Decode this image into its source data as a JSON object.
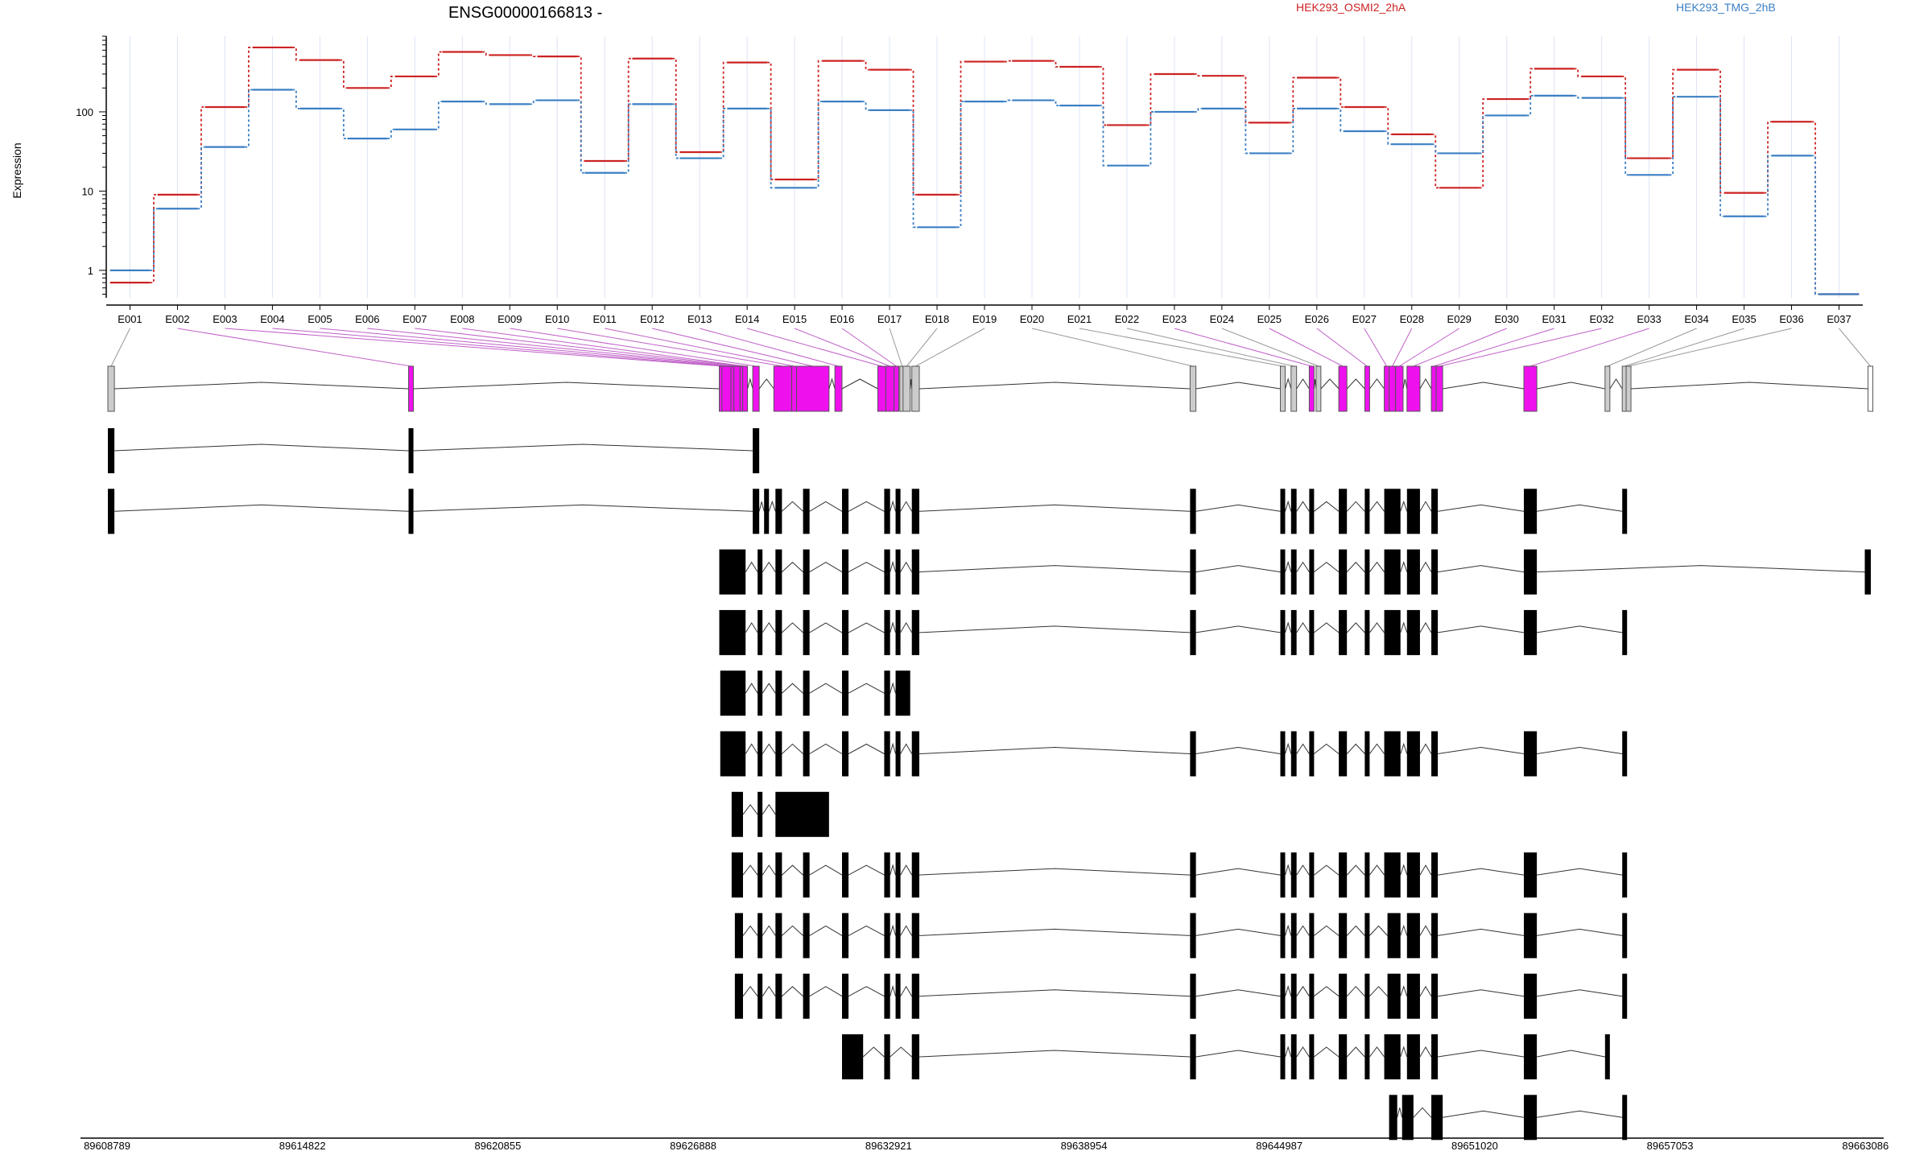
{
  "header": {
    "gene_title": "ENSG00000166813 -",
    "legend": [
      {
        "label": "HEK293_OSMI2_2hA",
        "color": "#cc2222"
      },
      {
        "label": "HEK293_TMG_2hB",
        "color": "#3a7fc4"
      }
    ]
  },
  "chart_data": [
    {
      "type": "line",
      "ylabel": "Expression",
      "y_scale": "log",
      "y_ticks": [
        "1",
        "10",
        "100"
      ],
      "y_tick_values": [
        1,
        10,
        100
      ],
      "ylim": [
        0.45,
        900
      ],
      "categories": [
        "E001",
        "E002",
        "E003",
        "E004",
        "E005",
        "E006",
        "E007",
        "E008",
        "E009",
        "E010",
        "E011",
        "E012",
        "E013",
        "E014",
        "E015",
        "E016",
        "E017",
        "E018",
        "E019",
        "E020",
        "E021",
        "E022",
        "E023",
        "E024",
        "E025",
        "E026",
        "E027",
        "E028",
        "E029",
        "E030",
        "E031",
        "E032",
        "E033",
        "E034",
        "E035",
        "E036",
        "E037"
      ],
      "series": [
        {
          "name": "HEK293_OSMI2_2hA",
          "color": "#cc2222",
          "values": [
            0.7,
            9,
            115,
            650,
            450,
            200,
            280,
            570,
            520,
            500,
            24,
            470,
            31,
            420,
            14,
            440,
            340,
            9,
            430,
            440,
            370,
            68,
            300,
            285,
            73,
            270,
            115,
            52,
            11,
            145,
            350,
            280,
            26,
            340,
            9.5,
            75,
            0.5
          ]
        },
        {
          "name": "HEK293_TMG_2hB",
          "color": "#3a7fc4",
          "values": [
            1,
            6,
            36,
            190,
            110,
            46,
            60,
            135,
            125,
            140,
            17,
            125,
            26,
            110,
            11,
            135,
            105,
            3.5,
            135,
            140,
            120,
            21,
            100,
            110,
            30,
            110,
            57,
            39,
            30,
            90,
            160,
            150,
            16,
            155,
            4.8,
            28,
            0.5
          ]
        }
      ]
    },
    {
      "type": "gene-model",
      "x_ticks": [
        "89608789",
        "89614822",
        "89620855",
        "89626888",
        "89632921",
        "89638954",
        "89644987",
        "89651020",
        "89657053",
        "89663086"
      ],
      "x_tick_values": [
        89608789,
        89614822,
        89620855,
        89626888,
        89632921,
        89638954,
        89644987,
        89651020,
        89657053,
        89663086
      ],
      "xlim": [
        89608789,
        89663086
      ],
      "exon_bins": [
        {
          "id": "E001",
          "start": 89608789,
          "end": 89608990,
          "sig": false
        },
        {
          "id": "E002",
          "start": 89618050,
          "end": 89618200,
          "sig": true
        },
        {
          "id": "E003",
          "start": 89627620,
          "end": 89627700,
          "sig": true
        },
        {
          "id": "E004",
          "start": 89627700,
          "end": 89627980,
          "sig": true
        },
        {
          "id": "E005",
          "start": 89627980,
          "end": 89628070,
          "sig": true
        },
        {
          "id": "E006",
          "start": 89628070,
          "end": 89628260,
          "sig": true
        },
        {
          "id": "E007",
          "start": 89628260,
          "end": 89628340,
          "sig": true
        },
        {
          "id": "E008",
          "start": 89628340,
          "end": 89628430,
          "sig": true
        },
        {
          "id": "E009",
          "start": 89628650,
          "end": 89628850,
          "sig": true
        },
        {
          "id": "E010",
          "start": 89629300,
          "end": 89629850,
          "sig": true
        },
        {
          "id": "E011",
          "start": 89629850,
          "end": 89630000,
          "sig": true
        },
        {
          "id": "E012",
          "start": 89630000,
          "end": 89631000,
          "sig": true
        },
        {
          "id": "E013",
          "start": 89631180,
          "end": 89631400,
          "sig": true
        },
        {
          "id": "E014",
          "start": 89632500,
          "end": 89632750,
          "sig": true
        },
        {
          "id": "E015",
          "start": 89632750,
          "end": 89633000,
          "sig": true
        },
        {
          "id": "E016",
          "start": 89633000,
          "end": 89633100,
          "sig": true
        },
        {
          "id": "E017",
          "start": 89633180,
          "end": 89633280,
          "sig": false
        },
        {
          "id": "E018",
          "start": 89633280,
          "end": 89633500,
          "sig": false
        },
        {
          "id": "E019",
          "start": 89633550,
          "end": 89633780,
          "sig": false
        },
        {
          "id": "E020",
          "start": 89642120,
          "end": 89642300,
          "sig": false
        },
        {
          "id": "E021",
          "start": 89644900,
          "end": 89645030,
          "sig": false
        },
        {
          "id": "E022",
          "start": 89645230,
          "end": 89645400,
          "sig": false
        },
        {
          "id": "E023",
          "start": 89645790,
          "end": 89645900,
          "sig": true
        },
        {
          "id": "E024",
          "start": 89646000,
          "end": 89646060,
          "sig": false
        },
        {
          "id": "E025",
          "start": 89646700,
          "end": 89646950,
          "sig": true
        },
        {
          "id": "E026",
          "start": 89647500,
          "end": 89647650,
          "sig": true
        },
        {
          "id": "E027",
          "start": 89648100,
          "end": 89648250,
          "sig": true
        },
        {
          "id": "E028",
          "start": 89648250,
          "end": 89648450,
          "sig": true
        },
        {
          "id": "E029",
          "start": 89648450,
          "end": 89648680,
          "sig": true
        },
        {
          "id": "E030",
          "start": 89648800,
          "end": 89649200,
          "sig": true
        },
        {
          "id": "E031",
          "start": 89649550,
          "end": 89649700,
          "sig": true
        },
        {
          "id": "E032",
          "start": 89649700,
          "end": 89649900,
          "sig": true
        },
        {
          "id": "E033",
          "start": 89652400,
          "end": 89652800,
          "sig": true
        },
        {
          "id": "E034",
          "start": 89654900,
          "end": 89655000,
          "sig": false
        },
        {
          "id": "E035",
          "start": 89655430,
          "end": 89655550,
          "sig": false
        },
        {
          "id": "E036",
          "start": 89655550,
          "end": 89655570,
          "sig": false
        },
        {
          "id": "E037",
          "start": 89663000,
          "end": 89663086,
          "sig": false
        }
      ],
      "transcripts": [
        [
          [
            89608789,
            89608990
          ],
          [
            89618050,
            89618200
          ],
          [
            89628650,
            89628850
          ]
        ],
        [
          [
            89608789,
            89608990
          ],
          [
            89618050,
            89618200
          ],
          [
            89628650,
            89628850
          ],
          [
            89629000,
            89629150
          ],
          [
            89629350,
            89629550
          ],
          [
            89630200,
            89630400
          ],
          [
            89631400,
            89631600
          ],
          [
            89632700,
            89632880
          ],
          [
            89633050,
            89633200
          ],
          [
            89633550,
            89633780
          ],
          [
            89642120,
            89642300
          ],
          [
            89644900,
            89645030
          ],
          [
            89645230,
            89645400
          ],
          [
            89645790,
            89645900
          ],
          [
            89646700,
            89646950
          ],
          [
            89647500,
            89647650
          ],
          [
            89648100,
            89648600
          ],
          [
            89648800,
            89649200
          ],
          [
            89649550,
            89649750
          ],
          [
            89652400,
            89652800
          ],
          [
            89655430,
            89655550
          ]
        ],
        [
          [
            89627620,
            89628430
          ],
          [
            89628800,
            89628950
          ],
          [
            89629350,
            89629550
          ],
          [
            89630200,
            89630400
          ],
          [
            89631400,
            89631600
          ],
          [
            89632700,
            89632880
          ],
          [
            89633050,
            89633200
          ],
          [
            89633550,
            89633780
          ],
          [
            89642120,
            89642300
          ],
          [
            89644900,
            89645030
          ],
          [
            89645230,
            89645400
          ],
          [
            89645790,
            89645900
          ],
          [
            89646700,
            89646950
          ],
          [
            89647500,
            89647650
          ],
          [
            89648100,
            89648600
          ],
          [
            89648800,
            89649200
          ],
          [
            89649550,
            89649750
          ],
          [
            89652400,
            89652800
          ],
          [
            89662900,
            89663086
          ]
        ],
        [
          [
            89627620,
            89628430
          ],
          [
            89628800,
            89628950
          ],
          [
            89629350,
            89629550
          ],
          [
            89630200,
            89630400
          ],
          [
            89631400,
            89631600
          ],
          [
            89632700,
            89632880
          ],
          [
            89633050,
            89633200
          ],
          [
            89633550,
            89633780
          ],
          [
            89642120,
            89642300
          ],
          [
            89644900,
            89645030
          ],
          [
            89645230,
            89645400
          ],
          [
            89645790,
            89645900
          ],
          [
            89646700,
            89646950
          ],
          [
            89647500,
            89647650
          ],
          [
            89648100,
            89648600
          ],
          [
            89648800,
            89649200
          ],
          [
            89649550,
            89649750
          ],
          [
            89652400,
            89652800
          ],
          [
            89655430,
            89655550
          ]
        ],
        [
          [
            89627650,
            89628430
          ],
          [
            89628800,
            89628950
          ],
          [
            89629350,
            89629550
          ],
          [
            89630200,
            89630400
          ],
          [
            89631400,
            89631600
          ],
          [
            89632700,
            89632880
          ],
          [
            89633050,
            89633500
          ]
        ],
        [
          [
            89627650,
            89628430
          ],
          [
            89628800,
            89628950
          ],
          [
            89629350,
            89629550
          ],
          [
            89630200,
            89630400
          ],
          [
            89631400,
            89631600
          ],
          [
            89632700,
            89632880
          ],
          [
            89633050,
            89633200
          ],
          [
            89633550,
            89633780
          ],
          [
            89642120,
            89642300
          ],
          [
            89644900,
            89645030
          ],
          [
            89645230,
            89645400
          ],
          [
            89645790,
            89645900
          ],
          [
            89646700,
            89646950
          ],
          [
            89647500,
            89647650
          ],
          [
            89648100,
            89648600
          ],
          [
            89648800,
            89649200
          ],
          [
            89649550,
            89649750
          ],
          [
            89652400,
            89652800
          ],
          [
            89655430,
            89655550
          ]
        ],
        [
          [
            89628000,
            89628350
          ],
          [
            89628800,
            89628950
          ],
          [
            89629350,
            89631000
          ]
        ],
        [
          [
            89628000,
            89628350
          ],
          [
            89628800,
            89628950
          ],
          [
            89629350,
            89629550
          ],
          [
            89630200,
            89630400
          ],
          [
            89631400,
            89631600
          ],
          [
            89632700,
            89632880
          ],
          [
            89633050,
            89633200
          ],
          [
            89633550,
            89633780
          ],
          [
            89642120,
            89642300
          ],
          [
            89644900,
            89645030
          ],
          [
            89645230,
            89645400
          ],
          [
            89645790,
            89645900
          ],
          [
            89646700,
            89646950
          ],
          [
            89647500,
            89647650
          ],
          [
            89648100,
            89648600
          ],
          [
            89648800,
            89649200
          ],
          [
            89649550,
            89649750
          ],
          [
            89652400,
            89652800
          ],
          [
            89655430,
            89655550
          ]
        ],
        [
          [
            89628100,
            89628350
          ],
          [
            89628800,
            89628950
          ],
          [
            89629350,
            89629550
          ],
          [
            89630200,
            89630400
          ],
          [
            89631400,
            89631600
          ],
          [
            89632700,
            89632880
          ],
          [
            89633050,
            89633200
          ],
          [
            89633550,
            89633780
          ],
          [
            89642120,
            89642300
          ],
          [
            89644900,
            89645030
          ],
          [
            89645230,
            89645400
          ],
          [
            89645790,
            89645900
          ],
          [
            89646700,
            89646950
          ],
          [
            89647500,
            89647650
          ],
          [
            89648200,
            89648600
          ],
          [
            89648800,
            89649200
          ],
          [
            89649550,
            89649750
          ],
          [
            89652400,
            89652800
          ],
          [
            89655430,
            89655550
          ]
        ],
        [
          [
            89628100,
            89628350
          ],
          [
            89628800,
            89628950
          ],
          [
            89629350,
            89629550
          ],
          [
            89630200,
            89630400
          ],
          [
            89631400,
            89631600
          ],
          [
            89632700,
            89632880
          ],
          [
            89633050,
            89633200
          ],
          [
            89633550,
            89633780
          ],
          [
            89642120,
            89642300
          ],
          [
            89644900,
            89645030
          ],
          [
            89645230,
            89645400
          ],
          [
            89645790,
            89645900
          ],
          [
            89646700,
            89646950
          ],
          [
            89647500,
            89647650
          ],
          [
            89648200,
            89648600
          ],
          [
            89648800,
            89649200
          ],
          [
            89649550,
            89649750
          ],
          [
            89652400,
            89652800
          ],
          [
            89655430,
            89655550
          ]
        ],
        [
          [
            89631400,
            89632050
          ],
          [
            89632700,
            89632880
          ],
          [
            89633550,
            89633780
          ],
          [
            89642120,
            89642300
          ],
          [
            89644900,
            89645030
          ],
          [
            89645230,
            89645400
          ],
          [
            89645790,
            89645900
          ],
          [
            89646700,
            89646950
          ],
          [
            89647500,
            89647650
          ],
          [
            89648100,
            89648600
          ],
          [
            89648800,
            89649200
          ],
          [
            89649550,
            89649750
          ],
          [
            89652400,
            89652800
          ],
          [
            89654900,
            89655000
          ]
        ],
        [
          [
            89648250,
            89648500
          ],
          [
            89648650,
            89649000
          ],
          [
            89649550,
            89649900
          ],
          [
            89652400,
            89652800
          ],
          [
            89655430,
            89655550
          ]
        ]
      ]
    }
  ]
}
